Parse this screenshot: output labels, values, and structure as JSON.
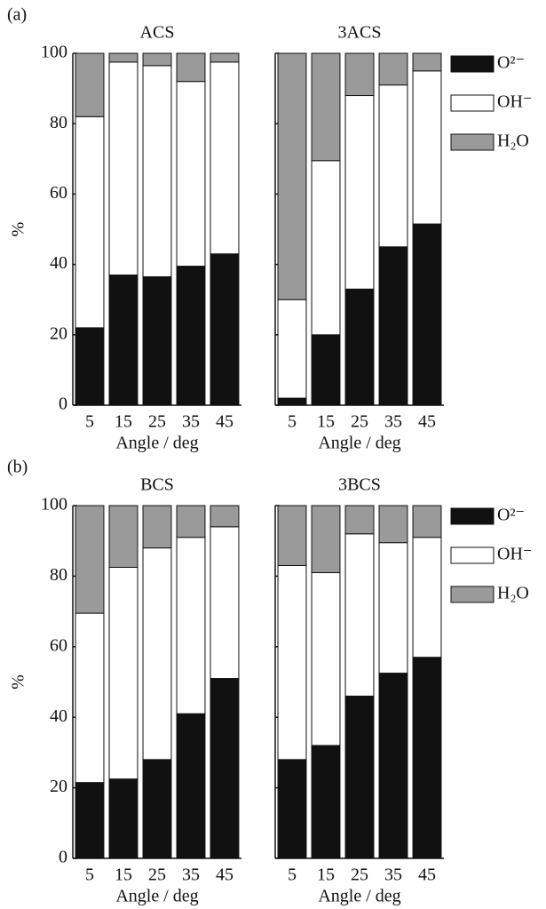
{
  "chart_data": [
    {
      "type": "stacked-bar",
      "panel_label": "(a)",
      "title": "ACS",
      "xlabel": "Angle / deg",
      "ylabel": "%",
      "categories": [
        "5",
        "15",
        "25",
        "35",
        "45"
      ],
      "ylim": [
        0,
        100
      ],
      "yticks": [
        0,
        20,
        40,
        60,
        80,
        100
      ],
      "series": [
        {
          "color": "#111111",
          "values": [
            22,
            37,
            36.5,
            39.5,
            43
          ]
        },
        {
          "color": "#ffffff",
          "values": [
            60,
            60.5,
            60,
            52.5,
            54.5
          ]
        },
        {
          "color": "#9a9a9a",
          "values": [
            18,
            2.5,
            3.5,
            8,
            2.5
          ]
        }
      ]
    },
    {
      "type": "stacked-bar",
      "title": "3ACS",
      "xlabel": "Angle / deg",
      "legend": "right",
      "categories": [
        "5",
        "15",
        "25",
        "35",
        "45"
      ],
      "ylim": [
        0,
        100
      ],
      "yticks": [
        0,
        20,
        40,
        60,
        80,
        100
      ],
      "series": [
        {
          "name": "O²⁻",
          "color": "#111111",
          "values": [
            2,
            20,
            33,
            45,
            51.5
          ]
        },
        {
          "name": "OH⁻",
          "color": "#ffffff",
          "values": [
            28,
            49.5,
            55,
            46,
            43.5
          ]
        },
        {
          "name": "H₂O",
          "color": "#9a9a9a",
          "values": [
            70,
            30.5,
            12,
            9,
            5
          ]
        }
      ]
    },
    {
      "type": "stacked-bar",
      "panel_label": "(b)",
      "title": "BCS",
      "xlabel": "Angle / deg",
      "ylabel": "%",
      "categories": [
        "5",
        "15",
        "25",
        "35",
        "45"
      ],
      "ylim": [
        0,
        100
      ],
      "yticks": [
        0,
        20,
        40,
        60,
        80,
        100
      ],
      "series": [
        {
          "color": "#111111",
          "values": [
            21.5,
            22.5,
            28,
            41,
            51
          ]
        },
        {
          "color": "#ffffff",
          "values": [
            48,
            60,
            60,
            50,
            43
          ]
        },
        {
          "color": "#9a9a9a",
          "values": [
            30.5,
            17.5,
            12,
            9,
            6
          ]
        }
      ]
    },
    {
      "type": "stacked-bar",
      "title": "3BCS",
      "xlabel": "Angle / deg",
      "legend": "right",
      "categories": [
        "5",
        "15",
        "25",
        "35",
        "45"
      ],
      "ylim": [
        0,
        100
      ],
      "yticks": [
        0,
        20,
        40,
        60,
        80,
        100
      ],
      "series": [
        {
          "name": "O²⁻",
          "color": "#111111",
          "values": [
            28,
            32,
            46,
            52.5,
            57
          ]
        },
        {
          "name": "OH⁻",
          "color": "#ffffff",
          "values": [
            55,
            49,
            46,
            37,
            34
          ]
        },
        {
          "name": "H₂O",
          "color": "#9a9a9a",
          "values": [
            17,
            19,
            8,
            10.5,
            9
          ]
        }
      ]
    }
  ]
}
